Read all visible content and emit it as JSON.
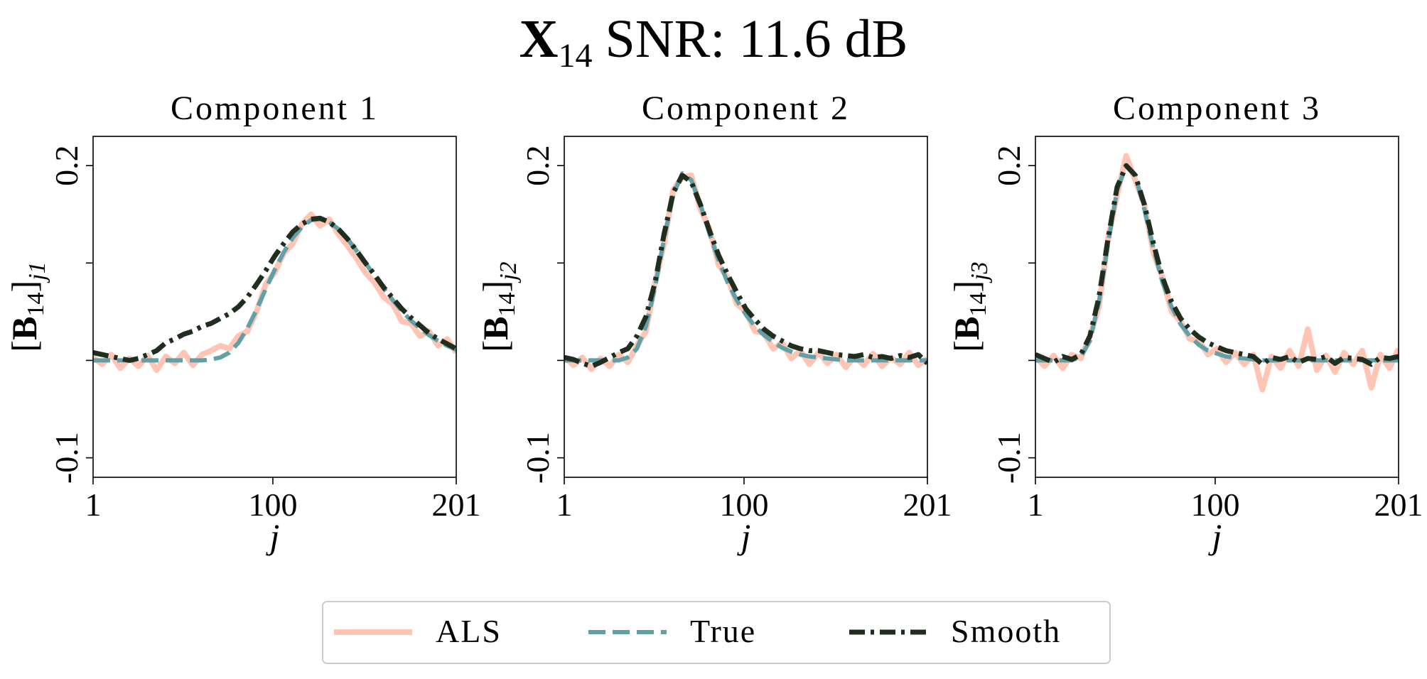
{
  "title": {
    "symbol": "X",
    "subscript": "14",
    "text": "SNR: 11.6 dB"
  },
  "legend": {
    "position": "lower center"
  },
  "chart_data": [
    {
      "type": "line",
      "title": "Component 1",
      "xlabel": "j",
      "ylabel": {
        "open": "[",
        "symbol": "B",
        "subscript": "14",
        "close": "]",
        "index": "j1"
      },
      "xlim": [
        1,
        201
      ],
      "ylim": [
        -0.12,
        0.23
      ],
      "xticks": [
        1,
        100,
        201
      ],
      "yticks": [
        -0.1,
        0.2
      ],
      "yminorticks": [
        0,
        0.1
      ],
      "x": [
        1,
        6,
        11,
        16,
        21,
        26,
        31,
        36,
        41,
        46,
        51,
        56,
        61,
        66,
        71,
        76,
        81,
        86,
        91,
        96,
        101,
        106,
        111,
        116,
        121,
        126,
        131,
        136,
        141,
        146,
        151,
        156,
        161,
        166,
        171,
        176,
        181,
        186,
        191,
        196,
        201
      ],
      "series": [
        {
          "name": "ALS",
          "color": "#ffc4b4",
          "style": "solid",
          "values": [
            0.003,
            -0.004,
            0.006,
            -0.008,
            0.002,
            -0.006,
            0.005,
            -0.01,
            0.004,
            -0.003,
            0.008,
            -0.005,
            0.006,
            0.01,
            0.015,
            0.012,
            0.025,
            0.03,
            0.05,
            0.078,
            0.09,
            0.11,
            0.12,
            0.14,
            0.15,
            0.138,
            0.145,
            0.13,
            0.118,
            0.105,
            0.09,
            0.08,
            0.065,
            0.058,
            0.04,
            0.038,
            0.025,
            0.03,
            0.015,
            0.022,
            0.008
          ]
        },
        {
          "name": "True",
          "color": "#62a0a8",
          "style": "dashed",
          "values": [
            0,
            0,
            0,
            0,
            0,
            0,
            0,
            0,
            0,
            0,
            0,
            0,
            0,
            0.001,
            0.003,
            0.008,
            0.018,
            0.033,
            0.052,
            0.073,
            0.093,
            0.111,
            0.126,
            0.137,
            0.144,
            0.145,
            0.142,
            0.135,
            0.125,
            0.113,
            0.1,
            0.087,
            0.074,
            0.062,
            0.051,
            0.041,
            0.033,
            0.026,
            0.02,
            0.015,
            0.011
          ]
        },
        {
          "name": "Smooth",
          "color": "#1f2e1f",
          "style": "dashdot",
          "values": [
            0.008,
            0.006,
            0.004,
            0.002,
            0,
            0.002,
            0.006,
            0.01,
            0.018,
            0.022,
            0.027,
            0.03,
            0.035,
            0.038,
            0.043,
            0.048,
            0.055,
            0.065,
            0.078,
            0.092,
            0.107,
            0.12,
            0.132,
            0.14,
            0.145,
            0.146,
            0.142,
            0.135,
            0.125,
            0.113,
            0.1,
            0.088,
            0.075,
            0.064,
            0.053,
            0.044,
            0.036,
            0.028,
            0.022,
            0.017,
            0.012
          ]
        }
      ]
    },
    {
      "type": "line",
      "title": "Component 2",
      "xlabel": "j",
      "ylabel": {
        "open": "[",
        "symbol": "B",
        "subscript": "14",
        "close": "]",
        "index": "j2"
      },
      "xlim": [
        1,
        201
      ],
      "ylim": [
        -0.12,
        0.23
      ],
      "xticks": [
        1,
        100,
        201
      ],
      "yticks": [
        -0.1,
        0.2
      ],
      "yminorticks": [
        0,
        0.1
      ],
      "x": [
        1,
        6,
        11,
        16,
        21,
        26,
        31,
        36,
        41,
        46,
        51,
        56,
        61,
        66,
        71,
        76,
        81,
        86,
        91,
        96,
        101,
        106,
        111,
        116,
        121,
        126,
        131,
        136,
        141,
        146,
        151,
        156,
        161,
        166,
        171,
        176,
        181,
        186,
        191,
        196,
        201
      ],
      "series": [
        {
          "name": "ALS",
          "color": "#ffc4b4",
          "style": "solid",
          "values": [
            0.004,
            -0.005,
            0.003,
            -0.009,
            0.002,
            -0.006,
            0.006,
            -0.002,
            0.015,
            0.03,
            0.08,
            0.12,
            0.175,
            0.188,
            0.19,
            0.155,
            0.135,
            0.098,
            0.085,
            0.058,
            0.05,
            0.03,
            0.028,
            0.012,
            0.018,
            0.002,
            0.01,
            -0.004,
            0.008,
            -0.003,
            0.006,
            -0.007,
            0.004,
            -0.005,
            0.007,
            -0.006,
            0.003,
            -0.004,
            0.008,
            -0.005,
            0.002
          ]
        },
        {
          "name": "True",
          "color": "#62a0a8",
          "style": "dashed",
          "values": [
            0,
            0,
            0,
            0,
            0,
            0,
            0,
            0.003,
            0.012,
            0.035,
            0.075,
            0.125,
            0.17,
            0.192,
            0.185,
            0.16,
            0.13,
            0.103,
            0.08,
            0.062,
            0.047,
            0.035,
            0.026,
            0.019,
            0.013,
            0.009,
            0.006,
            0.004,
            0.003,
            0.002,
            0.001,
            0,
            0,
            0,
            0,
            0,
            0,
            0,
            0,
            0,
            0
          ]
        },
        {
          "name": "Smooth",
          "color": "#1f2e1f",
          "style": "dashdot",
          "values": [
            0.003,
            0.001,
            -0.003,
            -0.006,
            -0.002,
            0.003,
            0.008,
            0.012,
            0.025,
            0.045,
            0.08,
            0.13,
            0.172,
            0.19,
            0.183,
            0.16,
            0.133,
            0.108,
            0.088,
            0.07,
            0.053,
            0.042,
            0.032,
            0.025,
            0.02,
            0.015,
            0.012,
            0.01,
            0.01,
            0.008,
            0.006,
            0.005,
            0.004,
            0.006,
            0.003,
            0.004,
            0.002,
            0.005,
            0.003,
            0.006,
            -0.003
          ]
        }
      ]
    },
    {
      "type": "line",
      "title": "Component 3",
      "xlabel": "j",
      "ylabel": {
        "open": "[",
        "symbol": "B",
        "subscript": "14",
        "close": "]",
        "index": "j3"
      },
      "xlim": [
        1,
        201
      ],
      "ylim": [
        -0.12,
        0.23
      ],
      "xticks": [
        1,
        100,
        201
      ],
      "yticks": [
        -0.1,
        0.2
      ],
      "yminorticks": [
        0,
        0.1
      ],
      "x": [
        1,
        6,
        11,
        16,
        21,
        26,
        31,
        36,
        41,
        46,
        51,
        56,
        61,
        66,
        71,
        76,
        81,
        86,
        91,
        96,
        101,
        106,
        111,
        116,
        121,
        126,
        131,
        136,
        141,
        146,
        151,
        156,
        161,
        166,
        171,
        176,
        181,
        186,
        191,
        196,
        201
      ],
      "series": [
        {
          "name": "ALS",
          "color": "#ffc4b4",
          "style": "solid",
          "values": [
            0.004,
            -0.006,
            0.005,
            -0.008,
            0.006,
            0.002,
            0.025,
            0.055,
            0.125,
            0.17,
            0.21,
            0.185,
            0.16,
            0.11,
            0.085,
            0.05,
            0.04,
            0.022,
            0.02,
            0.006,
            0.012,
            -0.002,
            0.008,
            -0.004,
            0.006,
            -0.03,
            0.004,
            -0.008,
            0.01,
            -0.006,
            0.032,
            -0.01,
            0.005,
            -0.012,
            0.008,
            -0.004,
            0.01,
            -0.028,
            0.006,
            -0.008,
            0.012
          ]
        },
        {
          "name": "True",
          "color": "#62a0a8",
          "style": "dashed",
          "values": [
            0,
            0,
            0,
            0,
            0,
            0.004,
            0.02,
            0.06,
            0.12,
            0.175,
            0.2,
            0.19,
            0.155,
            0.115,
            0.08,
            0.055,
            0.037,
            0.025,
            0.016,
            0.01,
            0.007,
            0.004,
            0.003,
            0.002,
            0.001,
            0,
            0,
            0,
            0,
            0,
            0,
            0,
            0,
            0,
            0,
            0,
            0,
            0,
            0,
            0,
            0
          ]
        },
        {
          "name": "Smooth",
          "color": "#1f2e1f",
          "style": "dashdot",
          "values": [
            0.006,
            0.002,
            -0.002,
            0.004,
            0.001,
            0.006,
            0.025,
            0.065,
            0.125,
            0.178,
            0.2,
            0.19,
            0.16,
            0.12,
            0.085,
            0.06,
            0.043,
            0.032,
            0.024,
            0.018,
            0.014,
            0.01,
            0.008,
            0.006,
            0.004,
            -0.004,
            0.003,
            0.001,
            0.004,
            -0.002,
            0.002,
            0.001,
            0.004,
            -0.003,
            0.003,
            0.002,
            0.001,
            -0.004,
            0.003,
            0.002,
            0.004
          ]
        }
      ]
    }
  ]
}
